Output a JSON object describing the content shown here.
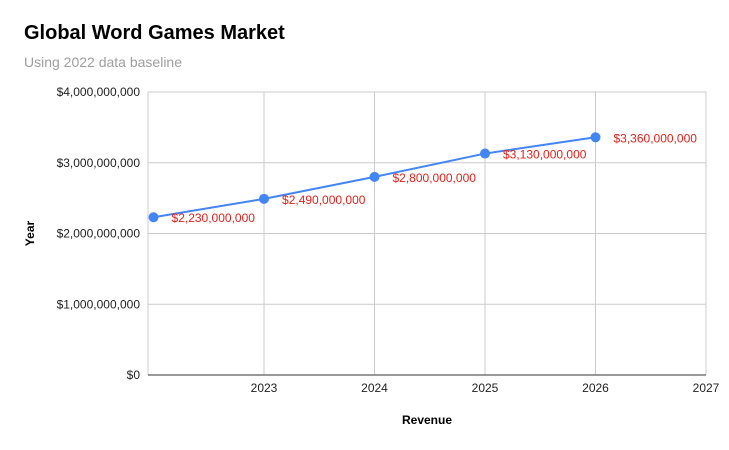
{
  "chart_data": {
    "type": "line",
    "title": "Global Word Games Market",
    "subtitle": "Using 2022 data baseline",
    "xlabel": "Revenue",
    "ylabel": "Year",
    "x": [
      2022,
      2023,
      2024,
      2025,
      2026
    ],
    "x_ticks": [
      "2023",
      "2024",
      "2025",
      "2026",
      "2027"
    ],
    "y_ticks": [
      "$0",
      "$1,000,000,000",
      "$2,000,000,000",
      "$3,000,000,000",
      "$4,000,000,000"
    ],
    "ylim": [
      0,
      4000000000
    ],
    "xlim": [
      2021.95,
      2027
    ],
    "grid": true,
    "legend": "none",
    "series": [
      {
        "name": "Revenue",
        "color": "#4285f4",
        "values": [
          2230000000,
          2490000000,
          2800000000,
          3130000000,
          3360000000
        ],
        "labels": [
          "$2,230,000,000",
          "$2,490,000,000",
          "$2,800,000,000",
          "$3,130,000,000",
          "$3,360,000,000"
        ],
        "label_color": "#e8201a"
      }
    ]
  }
}
